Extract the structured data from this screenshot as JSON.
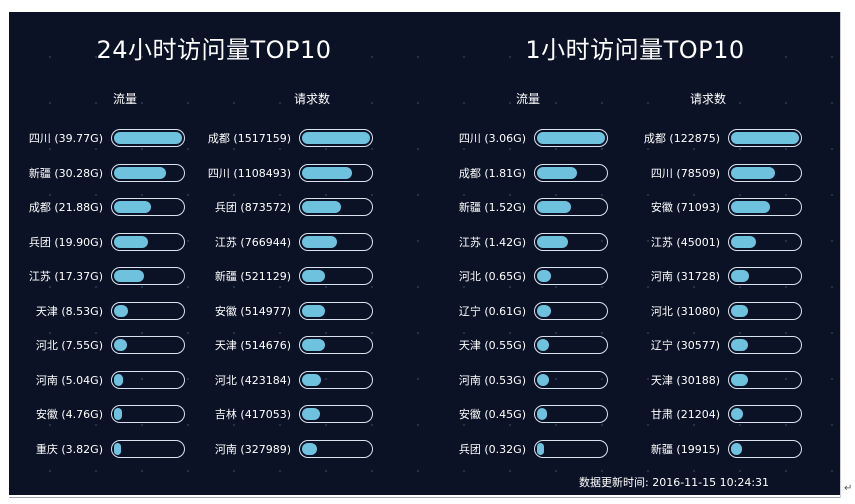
{
  "panels": [
    {
      "title": "24小时访问量TOP10",
      "flow_header": "流量",
      "req_header": "请求数",
      "flow": [
        {
          "label": "四川 (39.77G)",
          "ratio": 1.0
        },
        {
          "label": "新疆 (30.28G)",
          "ratio": 0.76
        },
        {
          "label": "成都 (21.88G)",
          "ratio": 0.55
        },
        {
          "label": "兵团 (19.90G)",
          "ratio": 0.5
        },
        {
          "label": "江苏 (17.37G)",
          "ratio": 0.44
        },
        {
          "label": "天津 (8.53G)",
          "ratio": 0.21
        },
        {
          "label": "河北 (7.55G)",
          "ratio": 0.19
        },
        {
          "label": "河南 (5.04G)",
          "ratio": 0.13
        },
        {
          "label": "安徽 (4.76G)",
          "ratio": 0.12
        },
        {
          "label": "重庆 (3.82G)",
          "ratio": 0.1
        }
      ],
      "requests": [
        {
          "label": "成都 (1517159)",
          "ratio": 1.0
        },
        {
          "label": "四川 (1108493)",
          "ratio": 0.73
        },
        {
          "label": "兵团 (873572)",
          "ratio": 0.58
        },
        {
          "label": "江苏 (766944)",
          "ratio": 0.51
        },
        {
          "label": "新疆 (521129)",
          "ratio": 0.34
        },
        {
          "label": "安徽 (514977)",
          "ratio": 0.34
        },
        {
          "label": "天津 (514676)",
          "ratio": 0.34
        },
        {
          "label": "河北 (423184)",
          "ratio": 0.28
        },
        {
          "label": "吉林 (417053)",
          "ratio": 0.27
        },
        {
          "label": "河南 (327989)",
          "ratio": 0.22
        }
      ]
    },
    {
      "title": "1小时访问量TOP10",
      "flow_header": "流量",
      "req_header": "请求数",
      "flow": [
        {
          "label": "四川 (3.06G)",
          "ratio": 1.0
        },
        {
          "label": "成都 (1.81G)",
          "ratio": 0.59
        },
        {
          "label": "新疆 (1.52G)",
          "ratio": 0.5
        },
        {
          "label": "江苏 (1.42G)",
          "ratio": 0.46
        },
        {
          "label": "河北 (0.65G)",
          "ratio": 0.21
        },
        {
          "label": "辽宁 (0.61G)",
          "ratio": 0.2
        },
        {
          "label": "天津 (0.55G)",
          "ratio": 0.18
        },
        {
          "label": "河南 (0.53G)",
          "ratio": 0.17
        },
        {
          "label": "安徽 (0.45G)",
          "ratio": 0.15
        },
        {
          "label": "兵团 (0.32G)",
          "ratio": 0.1
        }
      ],
      "requests": [
        {
          "label": "成都 (122875)",
          "ratio": 1.0
        },
        {
          "label": "四川 (78509)",
          "ratio": 0.64
        },
        {
          "label": "安徽 (71093)",
          "ratio": 0.58
        },
        {
          "label": "江苏 (45001)",
          "ratio": 0.37
        },
        {
          "label": "河南 (31728)",
          "ratio": 0.26
        },
        {
          "label": "河北 (31080)",
          "ratio": 0.25
        },
        {
          "label": "辽宁 (30577)",
          "ratio": 0.25
        },
        {
          "label": "天津 (30188)",
          "ratio": 0.25
        },
        {
          "label": "甘肃 (21204)",
          "ratio": 0.17
        },
        {
          "label": "新疆 (19915)",
          "ratio": 0.16
        }
      ]
    }
  ],
  "footer": {
    "label": "数据更新时间:",
    "timestamp": "2016-11-15 10:24:31"
  },
  "colors": {
    "background": "#0b1226",
    "bar_fill": "#6ec2dd",
    "track_border": "#d9e2ee"
  }
}
